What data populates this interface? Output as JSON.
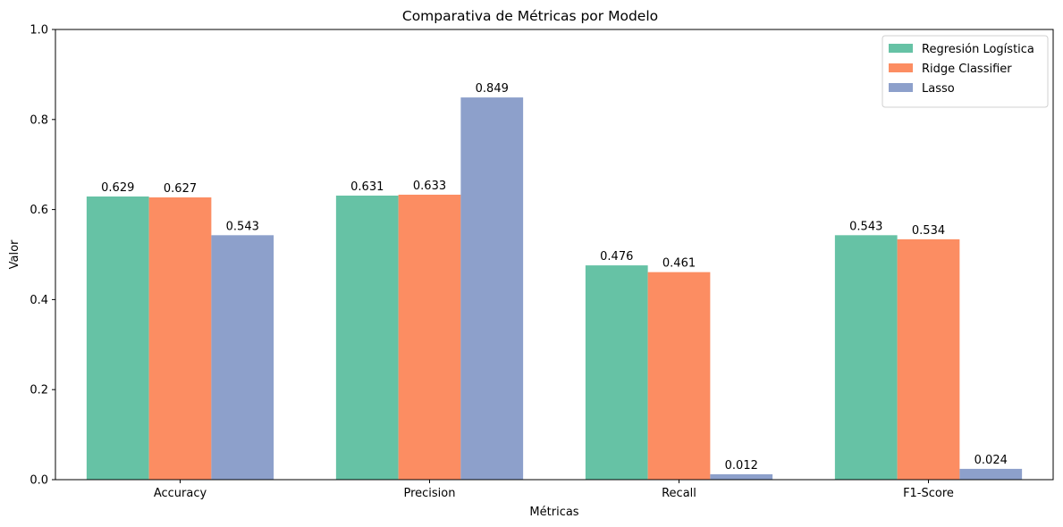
{
  "chart_data": {
    "type": "bar",
    "title": "Comparativa de Métricas por Modelo",
    "xlabel": "Métricas",
    "ylabel": "Valor",
    "ylim": [
      0,
      1.0
    ],
    "yticks": [
      "0.0",
      "0.2",
      "0.4",
      "0.6",
      "0.8",
      "1.0"
    ],
    "categories": [
      "Accuracy",
      "Precision",
      "Recall",
      "F1-Score"
    ],
    "series": [
      {
        "name": "Regresión Logística",
        "color": "#66c2a5",
        "values": [
          0.629,
          0.631,
          0.476,
          0.543
        ],
        "labels": [
          "0.629",
          "0.631",
          "0.476",
          "0.543"
        ]
      },
      {
        "name": "Ridge Classifier",
        "color": "#fc8d62",
        "values": [
          0.627,
          0.633,
          0.461,
          0.534
        ],
        "labels": [
          "0.627",
          "0.633",
          "0.461",
          "0.534"
        ]
      },
      {
        "name": "Lasso",
        "color": "#8da0cb",
        "values": [
          0.543,
          0.849,
          0.012,
          0.024
        ],
        "labels": [
          "0.543",
          "0.849",
          "0.012",
          "0.024"
        ]
      }
    ],
    "grid": false,
    "legend_position": "top-right"
  }
}
